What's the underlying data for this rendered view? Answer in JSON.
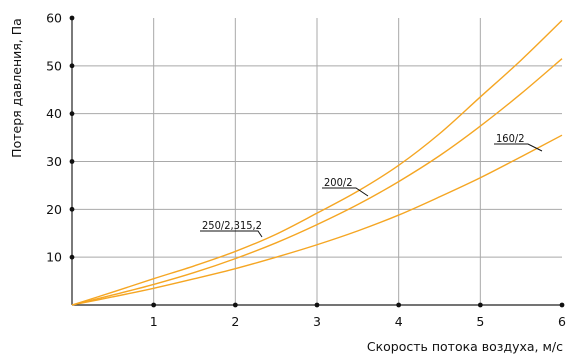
{
  "chart_data": {
    "type": "line",
    "xlabel": "Скорость потока воздуха, м/с",
    "ylabel": "Потеря давления, Па",
    "xlim": [
      0,
      6
    ],
    "ylim": [
      0,
      60
    ],
    "x_ticks": [
      1,
      2,
      3,
      4,
      5,
      6
    ],
    "x_tick_labels": [
      "1",
      "2",
      "3",
      "4",
      "5",
      "6"
    ],
    "y_ticks": [
      10,
      20,
      30,
      40,
      50,
      60
    ],
    "y_tick_labels": [
      "10",
      "20",
      "30",
      "40",
      "50",
      "60"
    ],
    "grid": true,
    "line_color": "#f5a623",
    "series": [
      {
        "name": "250/2,315,2",
        "x": [
          0,
          0.5,
          1,
          1.5,
          2,
          2.5,
          3,
          3.5,
          4,
          4.5,
          5,
          5.5,
          6
        ],
        "y": [
          0,
          2.7,
          5.5,
          8.2,
          11.2,
          14.8,
          19.2,
          23.8,
          29.2,
          35.8,
          43.5,
          51.2,
          59.5
        ]
      },
      {
        "name": "200/2",
        "x": [
          0,
          0.5,
          1,
          1.5,
          2,
          2.5,
          3,
          3.5,
          4,
          4.5,
          5,
          5.5,
          6
        ],
        "y": [
          0,
          2.1,
          4.3,
          6.8,
          9.7,
          13.0,
          16.8,
          21.0,
          25.8,
          31.2,
          37.4,
          44.2,
          51.5
        ]
      },
      {
        "name": "160/2",
        "x": [
          0,
          0.5,
          1,
          1.5,
          2,
          2.5,
          3,
          3.5,
          4,
          4.5,
          5,
          5.5,
          6
        ],
        "y": [
          0,
          1.7,
          3.5,
          5.5,
          7.6,
          10.0,
          12.6,
          15.5,
          18.8,
          22.6,
          26.6,
          31.0,
          35.5
        ]
      }
    ]
  }
}
